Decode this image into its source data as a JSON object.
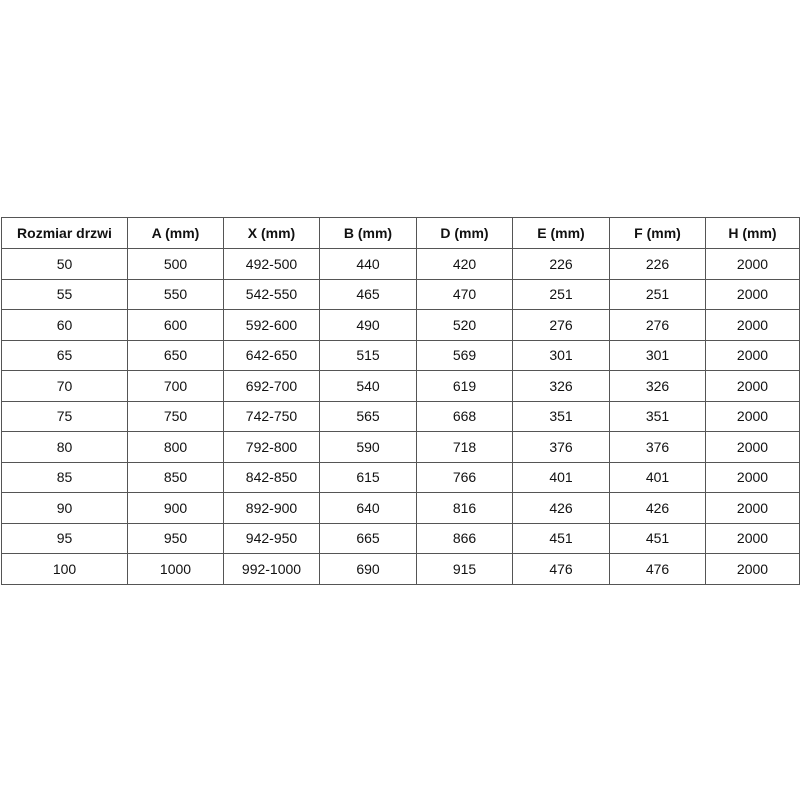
{
  "table": {
    "header": [
      "Rozmiar drzwi",
      "A (mm)",
      "X (mm)",
      "B (mm)",
      "D (mm)",
      "E (mm)",
      "F (mm)",
      "H (mm)"
    ],
    "rows": [
      [
        50,
        500,
        "492-500",
        440,
        420,
        226,
        226,
        2000
      ],
      [
        55,
        550,
        "542-550",
        465,
        470,
        251,
        251,
        2000
      ],
      [
        60,
        600,
        "592-600",
        490,
        520,
        276,
        276,
        2000
      ],
      [
        65,
        650,
        "642-650",
        515,
        569,
        301,
        301,
        2000
      ],
      [
        70,
        700,
        "692-700",
        540,
        619,
        326,
        326,
        2000
      ],
      [
        75,
        750,
        "742-750",
        565,
        668,
        351,
        351,
        2000
      ],
      [
        80,
        800,
        "792-800",
        590,
        718,
        376,
        376,
        2000
      ],
      [
        85,
        850,
        "842-850",
        615,
        766,
        401,
        401,
        2000
      ],
      [
        90,
        900,
        "892-900",
        640,
        816,
        426,
        426,
        2000
      ],
      [
        95,
        950,
        "942-950",
        665,
        866,
        451,
        451,
        2000
      ],
      [
        100,
        1000,
        "992-1000",
        690,
        915,
        476,
        476,
        2000
      ]
    ]
  }
}
